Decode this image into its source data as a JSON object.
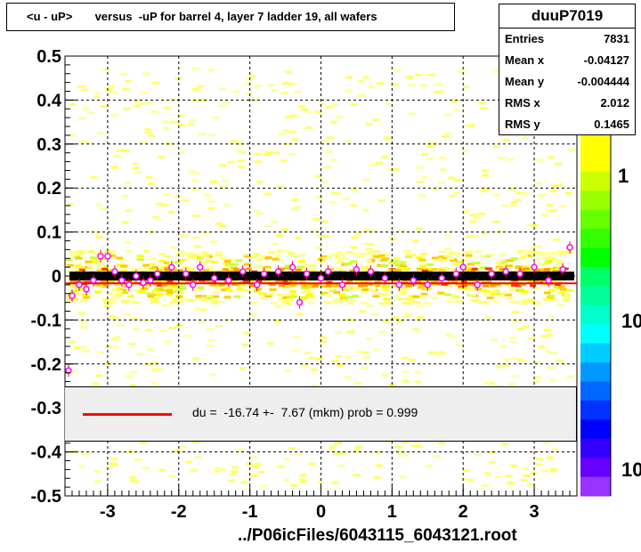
{
  "chart_data": {
    "type": "scatter",
    "title": "<u - uP>       versus  -uP for barrel 4, layer 7 ladder 19, all wafers",
    "xlabel": "../P06icFiles/6043115_6043121.root",
    "ylabel": "",
    "xlim": [
      -3.6,
      3.6
    ],
    "ylim": [
      -0.5,
      0.5
    ],
    "x_ticks": [
      -3,
      -2,
      -1,
      0,
      1,
      2,
      3
    ],
    "x_tick_labels": [
      "-3",
      "-2",
      "-1",
      "0",
      "1",
      "2",
      "3"
    ],
    "y_ticks": [
      -0.5,
      -0.4,
      -0.3,
      -0.2,
      -0.1,
      0,
      0.1,
      0.2,
      0.3,
      0.4,
      0.5
    ],
    "y_tick_labels": [
      "-0.5",
      "-0.4",
      "-0.3",
      "-0.2",
      "-0.1",
      "0",
      "0.1",
      "0.2",
      "0.3",
      "0.4",
      "0.5"
    ],
    "grid": true,
    "colorbar": {
      "scale": "log",
      "labels": [
        "1",
        "10",
        "10"
      ]
    },
    "stats": {
      "name": "duuP7019",
      "rows": [
        {
          "label": "Entries",
          "value": "7831"
        },
        {
          "label": "Mean x",
          "value": "-0.04127"
        },
        {
          "label": "Mean y",
          "value": "-0.004444"
        },
        {
          "label": "RMS x",
          "value": "2.012"
        },
        {
          "label": "RMS y",
          "value": "0.1465"
        }
      ]
    },
    "fit": {
      "text": "du =  -16.74 +-  7.67 (mkm) prob = 0.999",
      "offset_mkm": -16.74,
      "error_mkm": 7.67,
      "prob": 0.999,
      "color": "#ff0000"
    },
    "profile_series": [
      {
        "x": -3.5,
        "y": -0.045
      },
      {
        "x": -3.4,
        "y": -0.02
      },
      {
        "x": -3.3,
        "y": -0.03
      },
      {
        "x": -3.2,
        "y": -0.01
      },
      {
        "x": -3.1,
        "y": 0.045
      },
      {
        "x": -3.0,
        "y": 0.045
      },
      {
        "x": -2.9,
        "y": 0.01
      },
      {
        "x": -2.8,
        "y": -0.01
      },
      {
        "x": -2.7,
        "y": -0.02
      },
      {
        "x": -2.6,
        "y": 0.0
      },
      {
        "x": -2.5,
        "y": -0.015
      },
      {
        "x": -2.4,
        "y": -0.01
      },
      {
        "x": -2.3,
        "y": 0.005
      },
      {
        "x": -2.1,
        "y": 0.02
      },
      {
        "x": -1.9,
        "y": 0.005
      },
      {
        "x": -1.8,
        "y": -0.02
      },
      {
        "x": -1.7,
        "y": 0.02
      },
      {
        "x": -1.5,
        "y": -0.005
      },
      {
        "x": -1.3,
        "y": -0.01
      },
      {
        "x": -1.1,
        "y": 0.01
      },
      {
        "x": -0.9,
        "y": -0.02
      },
      {
        "x": -0.8,
        "y": 0.005
      },
      {
        "x": -0.6,
        "y": 0.01
      },
      {
        "x": -0.4,
        "y": 0.02
      },
      {
        "x": -0.3,
        "y": -0.06
      },
      {
        "x": -0.2,
        "y": 0.005
      },
      {
        "x": 0.0,
        "y": -0.005
      },
      {
        "x": 0.1,
        "y": 0.01
      },
      {
        "x": 0.3,
        "y": -0.02
      },
      {
        "x": 0.5,
        "y": 0.015
      },
      {
        "x": 0.7,
        "y": 0.01
      },
      {
        "x": 0.9,
        "y": -0.005
      },
      {
        "x": 1.1,
        "y": -0.02
      },
      {
        "x": 1.3,
        "y": -0.01
      },
      {
        "x": 1.5,
        "y": -0.02
      },
      {
        "x": 1.7,
        "y": -0.005
      },
      {
        "x": 1.9,
        "y": 0.005
      },
      {
        "x": 2.0,
        "y": 0.02
      },
      {
        "x": 2.2,
        "y": -0.02
      },
      {
        "x": 2.4,
        "y": 0.005
      },
      {
        "x": 2.6,
        "y": 0.01
      },
      {
        "x": 2.8,
        "y": 0.005
      },
      {
        "x": 3.0,
        "y": 0.02
      },
      {
        "x": 3.2,
        "y": -0.01
      },
      {
        "x": 3.4,
        "y": 0.015
      },
      {
        "x": 3.5,
        "y": 0.065
      }
    ],
    "outliers": [
      {
        "x": -3.55,
        "y": -0.215
      }
    ]
  }
}
